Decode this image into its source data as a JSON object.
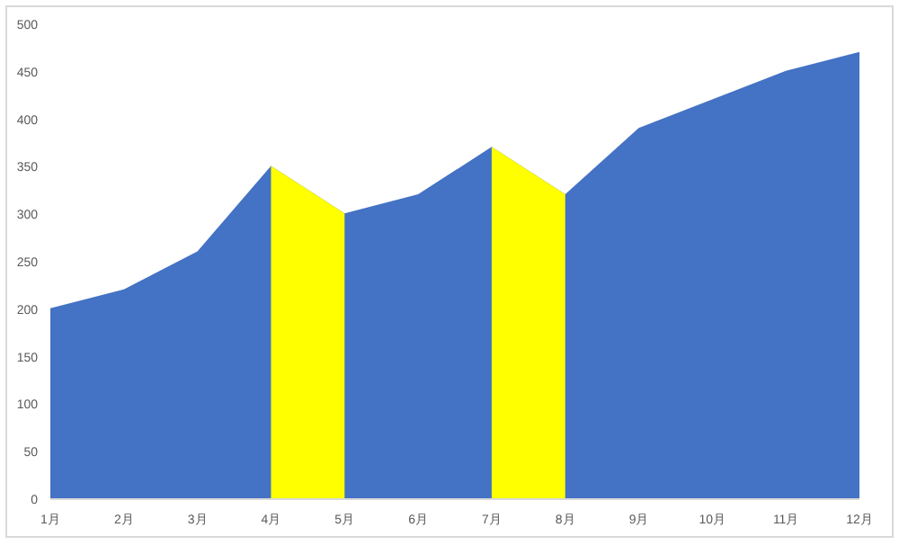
{
  "chart_data": {
    "type": "area",
    "categories": [
      "1月",
      "2月",
      "3月",
      "4月",
      "5月",
      "6月",
      "7月",
      "8月",
      "9月",
      "10月",
      "11月",
      "12月"
    ],
    "series": [
      {
        "color": "#4472c4",
        "values": [
          200,
          220,
          260,
          350,
          300,
          320,
          370,
          320,
          390,
          420,
          450,
          470
        ]
      },
      {
        "color": "#ffff00",
        "values": [
          null,
          null,
          null,
          350,
          300,
          null,
          370,
          320,
          null,
          null,
          null,
          null
        ]
      }
    ],
    "ylim": [
      0,
      500
    ],
    "yticks": [
      0,
      50,
      100,
      150,
      200,
      250,
      300,
      350,
      400,
      450,
      500
    ],
    "grid": false
  }
}
